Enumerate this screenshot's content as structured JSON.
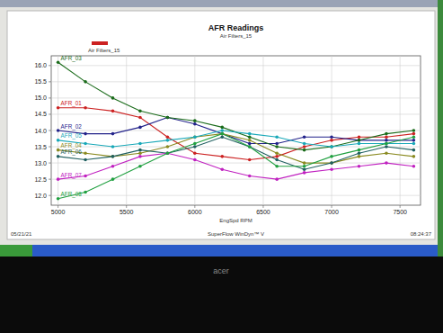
{
  "chart_data": {
    "type": "line",
    "title": "AFR Readings",
    "subtitle": "Air Filters_15",
    "x_label": "EngSpd RPM",
    "annotations": [
      "05/21/21",
      "08:24:37",
      "SuperFlow WinDyn™ V",
      "acer"
    ],
    "x": [
      5000,
      5200,
      5400,
      5600,
      5800,
      6000,
      6200,
      6400,
      6600,
      6800,
      7000,
      7200,
      7400,
      7600
    ],
    "xlim": [
      4950,
      7650
    ],
    "xticks": [
      5000,
      5500,
      6000,
      6500,
      7000,
      7500
    ],
    "ylim": [
      11.7,
      16.3
    ],
    "yticks": [
      {
        "value": 12,
        "label": "12.0"
      },
      12.5,
      {
        "value": 13,
        "label": "13.0"
      },
      13.5,
      {
        "value": 14,
        "label": "14.0"
      },
      14.5,
      {
        "value": 15,
        "label": "15.0"
      },
      15.5,
      {
        "value": 16,
        "label": "16.0"
      }
    ],
    "grid": true,
    "marker": "circle",
    "series": [
      {
        "name": "AFR_01",
        "color": "#cc2222",
        "values": [
          14.7,
          14.7,
          14.6,
          14.4,
          13.8,
          13.3,
          13.2,
          13.1,
          13.2,
          13.5,
          13.7,
          13.8,
          13.8,
          13.9
        ]
      },
      {
        "name": "AFR_02",
        "color": "#22228a",
        "values": [
          14.0,
          13.9,
          13.9,
          14.1,
          14.4,
          14.2,
          13.9,
          13.6,
          13.6,
          13.8,
          13.8,
          13.7,
          13.7,
          13.7
        ]
      },
      {
        "name": "AFR_03",
        "color": "#1a6b1a",
        "values": [
          16.1,
          15.5,
          15.0,
          14.6,
          14.4,
          14.3,
          14.1,
          13.8,
          13.5,
          13.4,
          13.5,
          13.7,
          13.9,
          14.0
        ]
      },
      {
        "name": "AFR_04",
        "color": "#8a8a20",
        "values": [
          13.4,
          13.3,
          13.2,
          13.3,
          13.5,
          13.8,
          13.9,
          13.7,
          13.3,
          13.0,
          13.0,
          13.2,
          13.3,
          13.2
        ]
      },
      {
        "name": "AFR_05",
        "color": "#18a8b8",
        "values": [
          13.7,
          13.6,
          13.5,
          13.6,
          13.7,
          13.8,
          14.0,
          13.9,
          13.8,
          13.6,
          13.5,
          13.6,
          13.6,
          13.6
        ]
      },
      {
        "name": "AFR_06",
        "color": "#206060",
        "values": [
          13.2,
          13.1,
          13.2,
          13.4,
          13.3,
          13.5,
          13.8,
          13.5,
          13.1,
          12.8,
          13.0,
          13.3,
          13.5,
          13.4
        ]
      },
      {
        "name": "AFR_07",
        "color": "#c020c0",
        "values": [
          12.5,
          12.6,
          12.9,
          13.2,
          13.3,
          13.1,
          12.8,
          12.6,
          12.5,
          12.7,
          12.8,
          12.9,
          13.0,
          12.9
        ]
      },
      {
        "name": "AFR_08",
        "color": "#20a040",
        "values": [
          11.9,
          12.1,
          12.5,
          12.9,
          13.3,
          13.6,
          13.9,
          13.5,
          12.9,
          12.9,
          13.2,
          13.4,
          13.6,
          13.8
        ]
      }
    ]
  }
}
